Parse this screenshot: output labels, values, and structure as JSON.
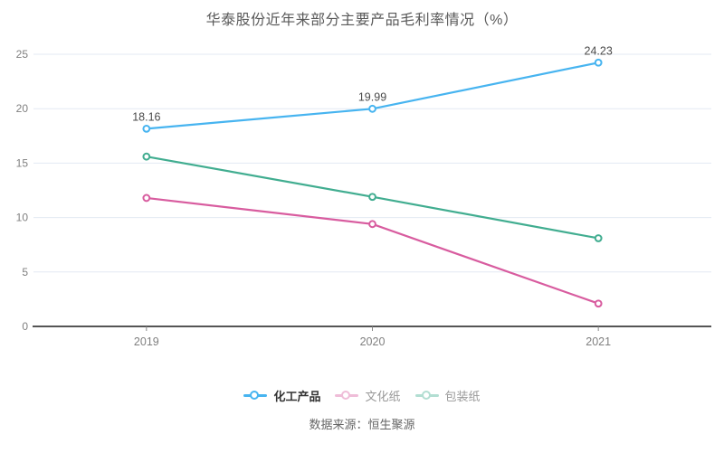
{
  "title": "华泰股份近年来部分主要产品毛利率情况（%）",
  "source": "数据来源：恒生聚源",
  "chart_data": {
    "type": "line",
    "categories": [
      "2019",
      "2020",
      "2021"
    ],
    "series": [
      {
        "name": "化工产品",
        "color": "#47b4f0",
        "values": [
          18.16,
          19.99,
          24.23
        ],
        "data_labels": [
          "18.16",
          "19.99",
          "24.23"
        ],
        "legend_state": "active"
      },
      {
        "name": "文化纸",
        "color": "#d85c9f",
        "values": [
          11.8,
          9.4,
          2.1
        ],
        "data_labels": [],
        "legend_state": "muted"
      },
      {
        "name": "包装纸",
        "color": "#41ad90",
        "values": [
          15.6,
          11.9,
          8.1
        ],
        "data_labels": [],
        "legend_state": "muted"
      }
    ],
    "ylim": [
      0,
      25
    ],
    "yticks": [
      0,
      5,
      10,
      15,
      20,
      25
    ],
    "grid": true,
    "legend_position": "bottom",
    "title": "华泰股份近年来部分主要产品毛利率情况（%）"
  },
  "colors": {
    "grid": "#e3e9f3",
    "axis": "#555555",
    "tick": "#888888",
    "tick_label": "#808080",
    "data_label": "#4a4a4a",
    "legend_active_text": "#333333",
    "legend_muted_text": "#999999"
  }
}
